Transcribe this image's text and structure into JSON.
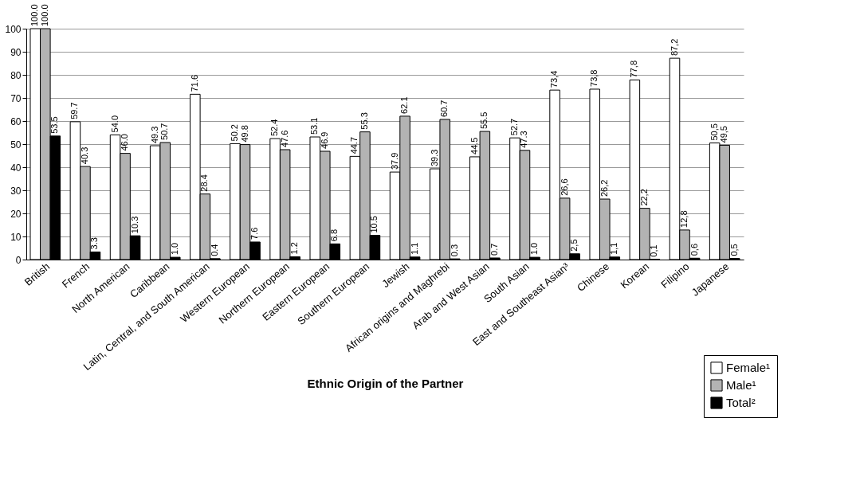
{
  "chart_data": {
    "type": "bar",
    "xlabel": "Ethnic Origin of the Partner",
    "categories": [
      "British",
      "French",
      "North American",
      "Caribbean",
      "Latin, Central, and South American",
      "Western European",
      "Northern European",
      "Eastern European",
      "Southern European",
      "Jewish",
      "African origins and Maghrebi",
      "Arab and West Asian",
      "South Asian",
      "East and Southeast Asian³",
      "Chinese",
      "Korean",
      "Filipino",
      "Japanese"
    ],
    "series": [
      {
        "name": "Female¹",
        "color": "#ffffff",
        "values": [
          100.0,
          59.7,
          54.0,
          49.3,
          71.6,
          50.2,
          52.4,
          53.1,
          44.7,
          37.9,
          39.3,
          44.5,
          52.7,
          73.4,
          73.8,
          77.8,
          87.2,
          50.5
        ],
        "value_labels": [
          "100.0",
          "59.7",
          "54.0",
          "49.3",
          "71.6",
          "50.2",
          "52.4",
          "53.1",
          "44.7",
          "37.9",
          "39.3",
          "44.5",
          "52.7",
          "73,4",
          "73,8",
          "77,8",
          "87,2",
          "50,5"
        ]
      },
      {
        "name": "Male¹",
        "color": "#b3b3b3",
        "values": [
          100.0,
          40.3,
          46.0,
          50.7,
          28.4,
          49.8,
          47.6,
          46.9,
          55.3,
          62.1,
          60.7,
          55.5,
          47.3,
          26.6,
          26.2,
          22.2,
          12.8,
          49.5
        ],
        "value_labels": [
          "100.0",
          "40.3",
          "46.0",
          "50.7",
          "28.4",
          "49.8",
          "47.6",
          "46.9",
          "55.3",
          "62.1",
          "60.7",
          "55.5",
          "47.3",
          "26,6",
          "26,2",
          "22,2",
          "12,8",
          "49,5"
        ]
      },
      {
        "name": "Total²",
        "color": "#000000",
        "values": [
          53.5,
          3.3,
          10.3,
          1.0,
          0.4,
          7.6,
          1.2,
          6.8,
          10.5,
          1.1,
          0.3,
          0.7,
          1.0,
          2.5,
          1.1,
          0.1,
          0.6,
          0.5
        ],
        "value_labels": [
          "53.5",
          "3.3",
          "10.3",
          "1.0",
          "0.4",
          "7.6",
          "1.2",
          "6.8",
          "10.5",
          "1.1",
          "0.3",
          "0.7",
          "1.0",
          "2,5",
          "1,1",
          "0,1",
          "0,6",
          "0,5"
        ]
      }
    ],
    "ylim": [
      0,
      100
    ],
    "yticks": [
      0,
      10,
      20,
      30,
      40,
      50,
      60,
      70,
      80,
      90,
      100
    ],
    "grid": "y",
    "legend": "bottom right"
  }
}
